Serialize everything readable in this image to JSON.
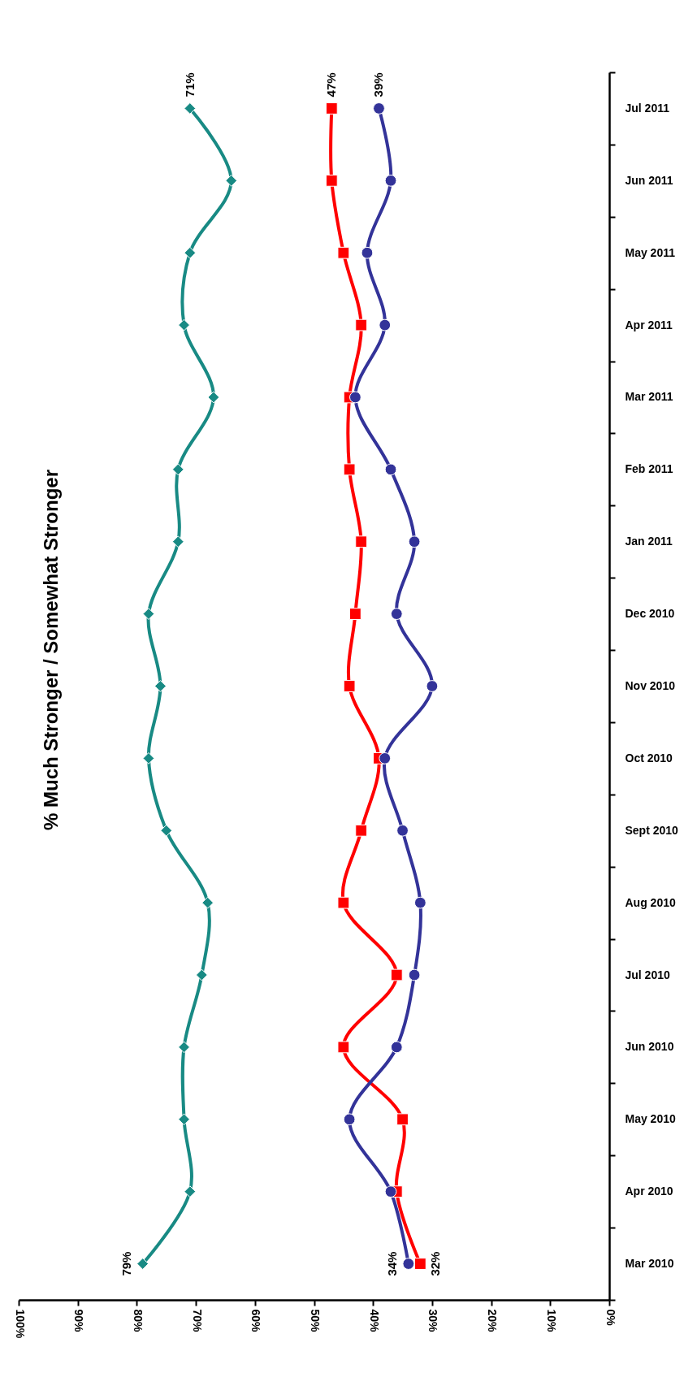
{
  "chart_data": {
    "type": "line",
    "title": "% Much Stronger / Somewhat Stronger",
    "orientation": "horizontal",
    "categories": [
      "Jul 2011",
      "Jun 2011",
      "May 2011",
      "Apr 2011",
      "Mar 2011",
      "Feb 2011",
      "Jan 2011",
      "Dec 2010",
      "Nov 2010",
      "Oct 2010",
      "Sept 2010",
      "Aug 2010",
      "Jul 2010",
      "Jun 2010",
      "May 2010",
      "Apr 2010",
      "Mar 2010"
    ],
    "series": [
      {
        "color": "#188a84",
        "marker": "diamond",
        "values": [
          71,
          64,
          71,
          72,
          67,
          73,
          73,
          78,
          76,
          78,
          75,
          68,
          69,
          72,
          72,
          71,
          79
        ],
        "value_labels": [
          "71%",
          null,
          null,
          null,
          null,
          null,
          null,
          null,
          null,
          null,
          null,
          null,
          null,
          null,
          null,
          null,
          "79%"
        ]
      },
      {
        "color": "#ff0000",
        "marker": "square",
        "values": [
          47,
          47,
          45,
          42,
          44,
          44,
          42,
          43,
          44,
          39,
          42,
          45,
          36,
          45,
          35,
          36,
          32
        ],
        "value_labels": [
          "47%",
          null,
          null,
          null,
          null,
          null,
          null,
          null,
          null,
          null,
          null,
          null,
          null,
          null,
          null,
          null,
          "32%"
        ]
      },
      {
        "color": "#333399",
        "marker": "circle",
        "values": [
          39,
          37,
          41,
          38,
          43,
          37,
          33,
          36,
          30,
          38,
          35,
          32,
          33,
          36,
          44,
          37,
          34
        ],
        "value_labels": [
          "39%",
          null,
          null,
          null,
          null,
          null,
          null,
          null,
          null,
          null,
          null,
          null,
          null,
          null,
          null,
          null,
          "34%"
        ]
      }
    ],
    "xlim": [
      100,
      0
    ],
    "xticks": [
      {
        "value": 100,
        "label": "100%"
      },
      {
        "value": 90,
        "label": "90%"
      },
      {
        "value": 80,
        "label": "80%"
      },
      {
        "value": 70,
        "label": "70%"
      },
      {
        "value": 60,
        "label": "60%"
      },
      {
        "value": 50,
        "label": "50%"
      },
      {
        "value": 40,
        "label": "40%"
      },
      {
        "value": 30,
        "label": "30%"
      },
      {
        "value": 20,
        "label": "20%"
      },
      {
        "value": 10,
        "label": "10%"
      },
      {
        "value": 0,
        "label": "0%"
      }
    ],
    "grid": false,
    "line_style": "solid"
  }
}
